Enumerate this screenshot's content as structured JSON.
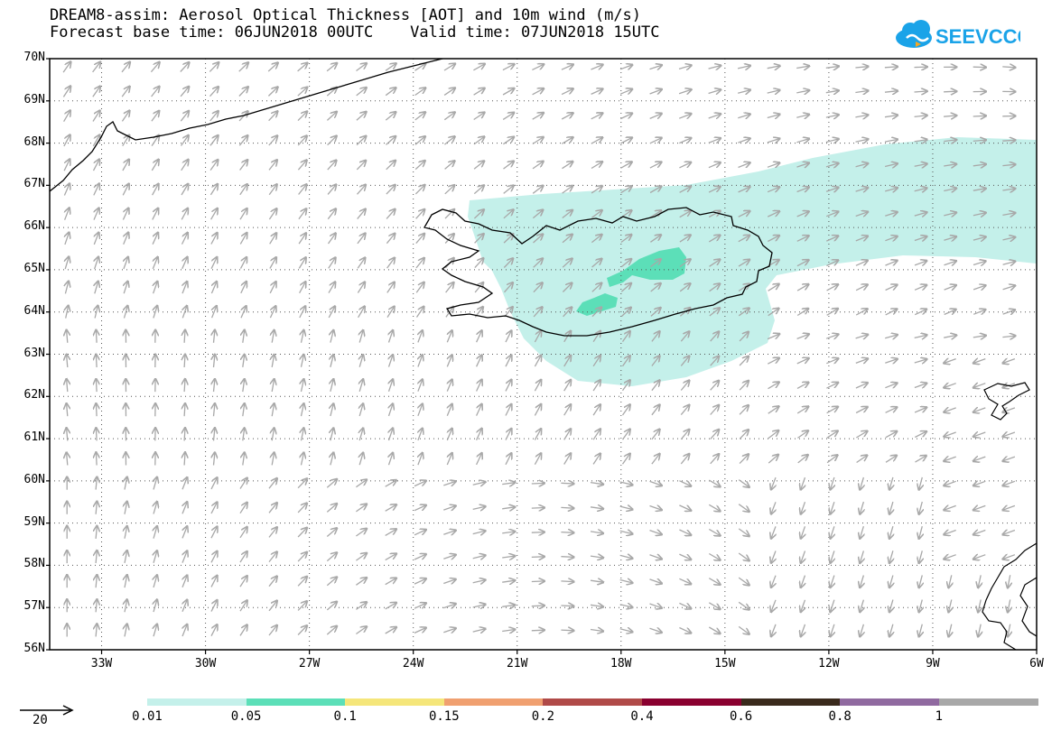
{
  "header": {
    "title": "DREAM8-assim: Aerosol Optical Thickness [AOT] and 10m wind (m/s)",
    "subtitle": "Forecast base time: 06JUN2018 00UTC    Valid time: 07JUN2018 15UTC"
  },
  "logo": {
    "text": "SEEVCCC",
    "icon": "cloud-icon",
    "color": "#1aa3e8"
  },
  "map": {
    "lat_labels": [
      "70N",
      "69N",
      "68N",
      "67N",
      "66N",
      "65N",
      "64N",
      "63N",
      "62N",
      "61N",
      "60N",
      "59N",
      "58N",
      "57N",
      "56N"
    ],
    "lon_labels": [
      "33W",
      "30W",
      "27W",
      "24W",
      "21W",
      "18W",
      "15W",
      "12W",
      "9W",
      "6W"
    ],
    "lat_range": [
      56,
      70
    ],
    "lon_range": [
      -34.5,
      -6
    ],
    "grid": true,
    "overlays": [
      "Iceland coastline",
      "Greenland coast",
      "Faroe Islands",
      "Scotland coast"
    ]
  },
  "wind_scale": {
    "value": "20",
    "unit": "m/s"
  },
  "colorbar": {
    "labels": [
      "0.01",
      "0.05",
      "0.1",
      "0.15",
      "0.2",
      "0.4",
      "0.6",
      "0.8",
      "1"
    ],
    "colors": [
      "#c4f0ea",
      "#5cdfb8",
      "#f5e67a",
      "#f0a070",
      "#b04a48",
      "#8a0030",
      "#3a2a1c",
      "#906aa0",
      "#a8a8a8"
    ]
  }
}
